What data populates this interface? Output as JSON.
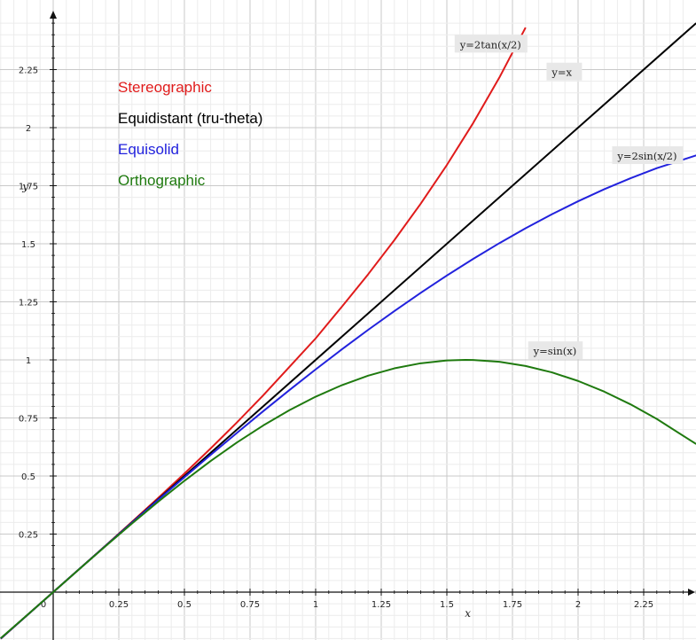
{
  "chart_data": {
    "type": "line",
    "xlabel": "x",
    "ylabel": "y",
    "xlim": [
      -0.2,
      2.45
    ],
    "ylim": [
      -0.2,
      2.45
    ],
    "grid": true,
    "x_ticks": [
      {
        "value": 0,
        "label": "0"
      },
      {
        "value": 0.25,
        "label": "0.25"
      },
      {
        "value": 0.5,
        "label": "0.5"
      },
      {
        "value": 0.75,
        "label": "0.75"
      },
      {
        "value": 1,
        "label": "1"
      },
      {
        "value": 1.25,
        "label": "1.25"
      },
      {
        "value": 1.5,
        "label": "1.5"
      },
      {
        "value": 1.75,
        "label": "1.75"
      },
      {
        "value": 2,
        "label": "2"
      },
      {
        "value": 2.25,
        "label": "2.25"
      }
    ],
    "y_ticks": [
      {
        "value": 0.25,
        "label": "0.25"
      },
      {
        "value": 0.5,
        "label": "0.5"
      },
      {
        "value": 0.75,
        "label": "0.75"
      },
      {
        "value": 1,
        "label": "1"
      },
      {
        "value": 1.25,
        "label": "1.25"
      },
      {
        "value": 1.5,
        "label": "1.5"
      },
      {
        "value": 1.75,
        "label": "1.75"
      },
      {
        "value": 2,
        "label": "2"
      },
      {
        "value": 2.25,
        "label": "2.25"
      }
    ],
    "legend": {
      "placement": "top-left",
      "entries": [
        {
          "label": "Stereographic",
          "color": "#e01b1b"
        },
        {
          "label": "Equidistant (tru-theta)",
          "color": "#000000"
        },
        {
          "label": "Equisolid",
          "color": "#2222dd"
        },
        {
          "label": "Orthographic",
          "color": "#1f7a0f"
        }
      ]
    },
    "series": [
      {
        "color": "#e01b1b",
        "annotation": "y=2tan(x/2)",
        "x": [
          -0.2,
          -0.1,
          0,
          0.1,
          0.2,
          0.3,
          0.4,
          0.5,
          0.6,
          0.7,
          0.8,
          0.9,
          1.0,
          1.1,
          1.2,
          1.3,
          1.4,
          1.5,
          1.6,
          1.7,
          1.8
        ],
        "y": [
          -0.2007,
          -0.1001,
          0,
          0.1001,
          0.2007,
          0.3023,
          0.4054,
          0.5106,
          0.6187,
          0.7306,
          0.8471,
          0.9695,
          1.0926,
          1.2292,
          1.3685,
          1.5158,
          1.6721,
          1.8392,
          2.0194,
          2.2155,
          2.4311
        ]
      },
      {
        "color": "#000000",
        "annotation": "y=x",
        "x": [
          -0.2,
          2.45
        ],
        "y": [
          -0.2,
          2.45
        ]
      },
      {
        "color": "#2222dd",
        "annotation": "y=2sin(x/2)",
        "x": [
          -0.2,
          -0.1,
          0,
          0.1,
          0.2,
          0.3,
          0.4,
          0.5,
          0.6,
          0.7,
          0.8,
          0.9,
          1.0,
          1.1,
          1.2,
          1.3,
          1.4,
          1.5,
          1.6,
          1.7,
          1.8,
          1.9,
          2.0,
          2.1,
          2.2,
          2.3,
          2.45
        ],
        "y": [
          -0.1997,
          -0.1,
          0,
          0.1,
          0.1997,
          0.2989,
          0.3973,
          0.4948,
          0.591,
          0.6857,
          0.7788,
          0.8699,
          0.9589,
          1.0455,
          1.1293,
          1.2104,
          1.2884,
          1.3633,
          1.4347,
          1.5026,
          1.5667,
          1.627,
          1.6829,
          1.735,
          1.7822,
          1.8255,
          1.8805
        ]
      },
      {
        "color": "#1f7a0f",
        "annotation": "y=sin(x)",
        "x": [
          -0.2,
          -0.1,
          0,
          0.1,
          0.2,
          0.3,
          0.4,
          0.5,
          0.6,
          0.7,
          0.8,
          0.9,
          1.0,
          1.1,
          1.2,
          1.3,
          1.4,
          1.5,
          1.5708,
          1.6,
          1.7,
          1.8,
          1.9,
          2.0,
          2.1,
          2.2,
          2.3,
          2.45
        ],
        "y": [
          -0.1987,
          -0.0998,
          0,
          0.0998,
          0.1987,
          0.2955,
          0.3894,
          0.4794,
          0.5646,
          0.6442,
          0.7174,
          0.7833,
          0.8415,
          0.8912,
          0.932,
          0.9636,
          0.9854,
          0.9975,
          1.0,
          0.9996,
          0.9917,
          0.9738,
          0.9463,
          0.9093,
          0.8632,
          0.8085,
          0.7457,
          0.6378
        ]
      }
    ],
    "equation_labels": [
      {
        "text": "y=2tan(x/2)",
        "at_x": 1.55,
        "at_y": 2.35
      },
      {
        "text": "y=x",
        "at_x": 1.9,
        "at_y": 2.23
      },
      {
        "text": "y=2sin(x/2)",
        "at_x": 2.15,
        "at_y": 1.87
      },
      {
        "text": "y=sin(x)",
        "at_x": 1.83,
        "at_y": 1.03
      }
    ]
  }
}
